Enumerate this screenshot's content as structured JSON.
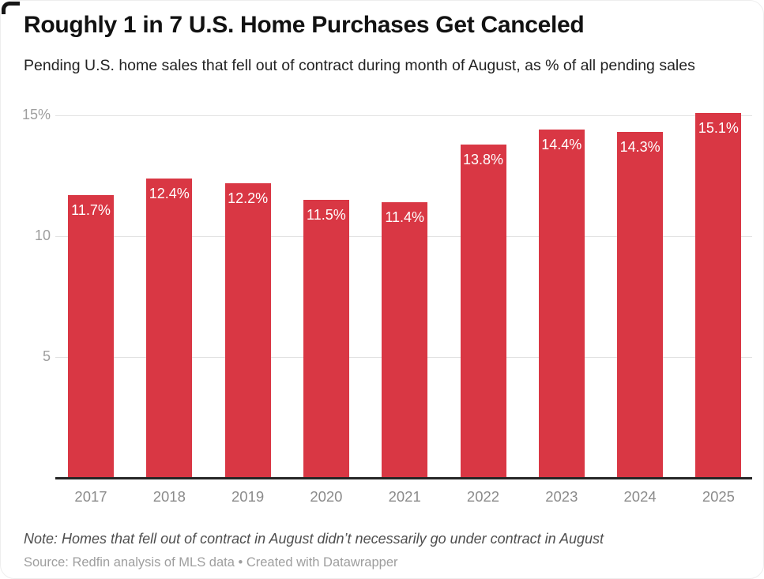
{
  "header": {
    "title": "Roughly 1 in 7 U.S. Home Purchases Get Canceled",
    "subtitle": "Pending U.S. home sales that fell out of contract during month of August, as % of all pending sales"
  },
  "chart_data": {
    "type": "bar",
    "title": "Roughly 1 in 7 U.S. Home Purchases Get Canceled",
    "subtitle": "Pending U.S. home sales that fell out of contract during month of August, as % of all pending sales",
    "categories": [
      "2017",
      "2018",
      "2019",
      "2020",
      "2021",
      "2022",
      "2023",
      "2024",
      "2025"
    ],
    "values": [
      11.7,
      12.4,
      12.2,
      11.5,
      11.4,
      13.8,
      14.4,
      14.3,
      15.1
    ],
    "bar_labels": [
      "11.7%",
      "12.4%",
      "12.2%",
      "11.5%",
      "11.4%",
      "13.8%",
      "14.4%",
      "14.3%",
      "15.1%"
    ],
    "xlabel": "",
    "ylabel": "",
    "ylim": [
      0,
      15.4
    ],
    "y_ticks": [
      {
        "value": 15,
        "label": "15%"
      },
      {
        "value": 10,
        "label": "10"
      },
      {
        "value": 5,
        "label": "5"
      }
    ],
    "grid": "horizontal-only",
    "legend": "none",
    "bar_color": "#d93744",
    "bar_label_color": "#ffffff",
    "axis_color": "#262626",
    "gridline_color": "#e2e2e2"
  },
  "footer": {
    "note": "Note: Homes that fell out of contract in August didn’t necessarily go under contract in August",
    "source": "Source: Redfin analysis of MLS data • Created with Datawrapper"
  }
}
